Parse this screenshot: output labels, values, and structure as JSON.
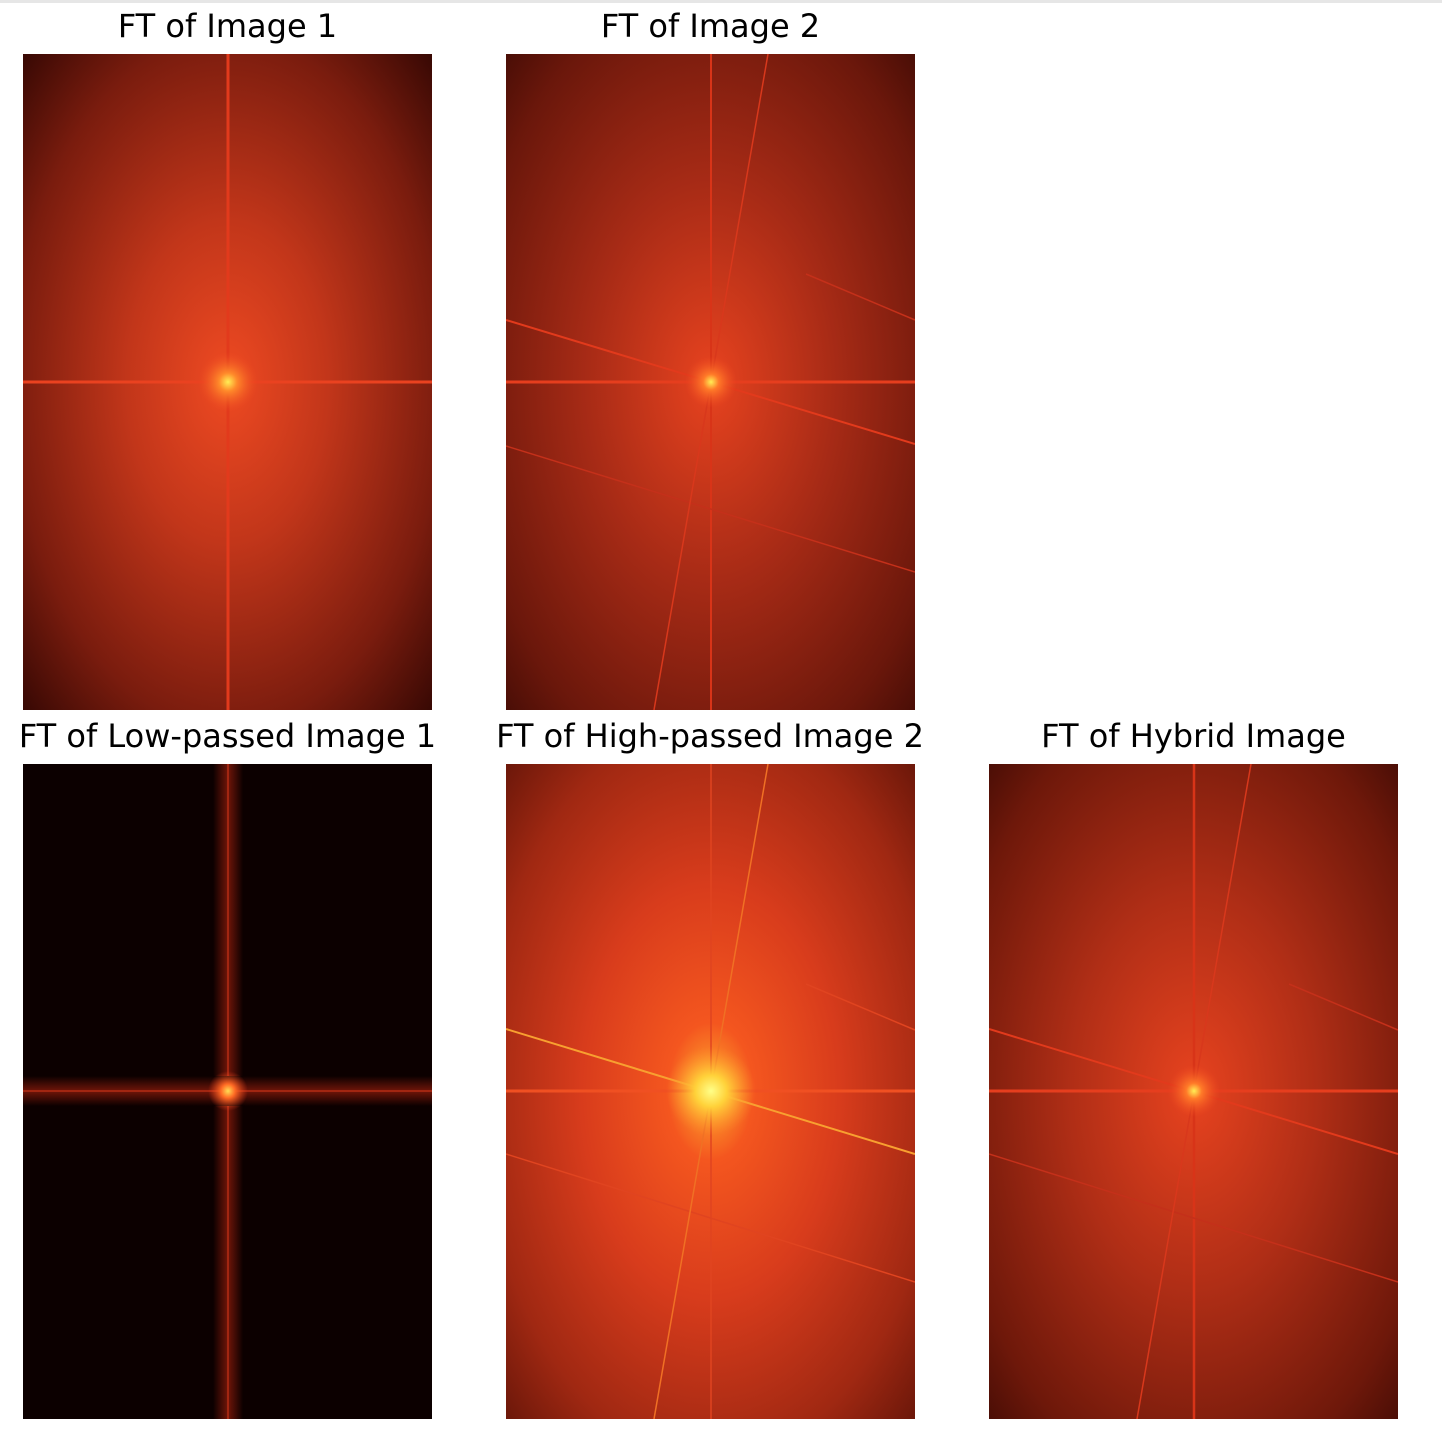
{
  "panels": [
    {
      "title": "FT of Image 1",
      "brightness": "medium",
      "tilted_lines": false
    },
    {
      "title": "FT of Image 2",
      "brightness": "medium",
      "tilted_lines": true
    },
    {
      "title": "FT of Low-passed Image 1",
      "brightness": "dark",
      "tilted_lines": false
    },
    {
      "title": "FT of High-passed Image 2",
      "brightness": "bright",
      "tilted_lines": true
    },
    {
      "title": "FT of Hybrid Image",
      "brightness": "medium",
      "tilted_lines": true
    }
  ],
  "colors": {
    "background": "#ffffff",
    "spectrum_dark": "#0c0000",
    "spectrum_mid": "#8a1f0e",
    "spectrum_bright": "#ef4a22",
    "spectrum_peak": "#ffee55"
  }
}
